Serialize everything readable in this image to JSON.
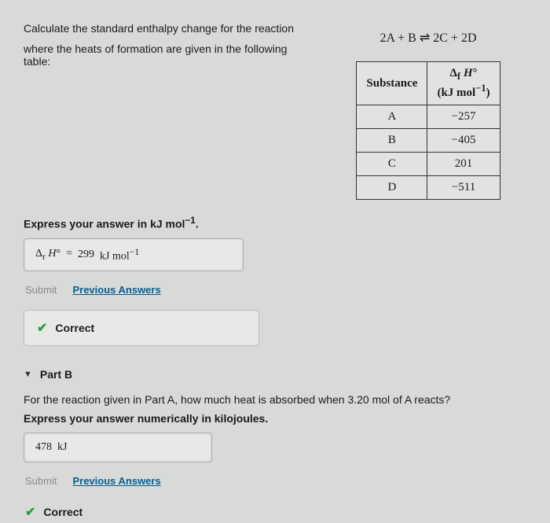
{
  "question": {
    "line1": "Calculate the standard enthalpy change for the reaction",
    "line2": "where the heats of formation are given in the following table:",
    "equation_html": "2A + B ⇌ 2C + 2D"
  },
  "table": {
    "header_substance": "Substance",
    "header_enthalpy_html": "Δ<sub>f</sub> <i>H</i>°<br>(kJ mol<sup>−1</sup>)",
    "rows": [
      {
        "substance": "A",
        "value": "−257"
      },
      {
        "substance": "B",
        "value": "−405"
      },
      {
        "substance": "C",
        "value": "201"
      },
      {
        "substance": "D",
        "value": "−511"
      }
    ]
  },
  "partA": {
    "instruction_html": "Express your answer in kJ mol<sup>−1</sup>.",
    "answer_prefix_html": "Δ<sub>r</sub> <i>H</i>° &nbsp;=&nbsp;",
    "answer_value": "299",
    "answer_unit_html": "kJ mol<sup>−1</sup>",
    "submit_label": "Submit",
    "prev_label": "Previous Answers",
    "correct_label": "Correct"
  },
  "partB": {
    "header": "Part B",
    "prompt_html": "For the reaction given in Part A, how much heat is absorbed when 3.20 mol of A reacts?",
    "instruction": "Express your answer numerically in kilojoules.",
    "answer_value": "478",
    "answer_unit": "kJ",
    "submit_label": "Submit",
    "prev_label": "Previous Answers",
    "correct_label": "Correct"
  }
}
